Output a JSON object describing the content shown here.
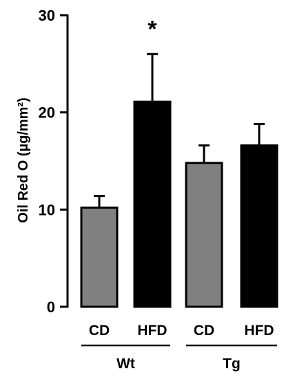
{
  "chart_data": {
    "type": "bar",
    "title": "",
    "xlabel": "",
    "ylabel": "Oil Red O (µg/mm²)",
    "ylim": [
      0,
      30
    ],
    "yticks": [
      "0",
      "10",
      "20",
      "30"
    ],
    "categories": [
      "CD",
      "HFD",
      "CD",
      "HFD"
    ],
    "groups": [
      {
        "label": "Wt",
        "categories": [
          0,
          1
        ]
      },
      {
        "label": "Tg",
        "categories": [
          2,
          3
        ]
      }
    ],
    "values": [
      10.2,
      21.1,
      14.8,
      16.6
    ],
    "errors": [
      1.2,
      4.9,
      1.8,
      2.2
    ],
    "bar_colors": [
      "#808080",
      "#000000",
      "#808080",
      "#000000"
    ],
    "annotations": [
      {
        "category": 1,
        "text": "*"
      }
    ],
    "grid": false,
    "legend": "none"
  }
}
